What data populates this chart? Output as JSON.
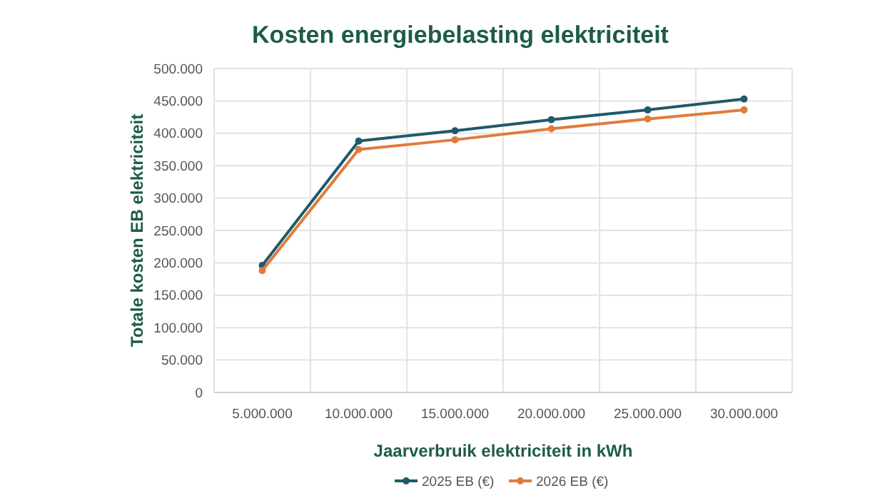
{
  "chart_data": {
    "type": "line",
    "title": "Kosten energiebelasting elektriciteit",
    "xlabel": "Jaarverbruik elektriciteit in kWh",
    "ylabel": "Totale kosten EB elektriciteit",
    "categories": [
      "5.000.000",
      "10.000.000",
      "15.000.000",
      "20.000.000",
      "25.000.000",
      "30.000.000"
    ],
    "series": [
      {
        "name": "2025 EB (€)",
        "color": "#1f5a6a",
        "values": [
          196000,
          388000,
          404000,
          421000,
          436000,
          453000
        ]
      },
      {
        "name": "2026 EB (€)",
        "color": "#e07b3c",
        "values": [
          188000,
          375000,
          390000,
          407000,
          422000,
          436000
        ]
      }
    ],
    "ylim": [
      0,
      500000
    ],
    "yticks": [
      {
        "value": 0,
        "label": "0"
      },
      {
        "value": 50000,
        "label": "50.000"
      },
      {
        "value": 100000,
        "label": "100.000"
      },
      {
        "value": 150000,
        "label": "150.000"
      },
      {
        "value": 200000,
        "label": "200.000"
      },
      {
        "value": 250000,
        "label": "250.000"
      },
      {
        "value": 300000,
        "label": "300.000"
      },
      {
        "value": 350000,
        "label": "350.000"
      },
      {
        "value": 400000,
        "label": "400.000"
      },
      {
        "value": 450000,
        "label": "450.000"
      },
      {
        "value": 500000,
        "label": "500.000"
      }
    ],
    "grid": true,
    "legend": "bottom",
    "marker": "circle",
    "line_style": "solid"
  }
}
